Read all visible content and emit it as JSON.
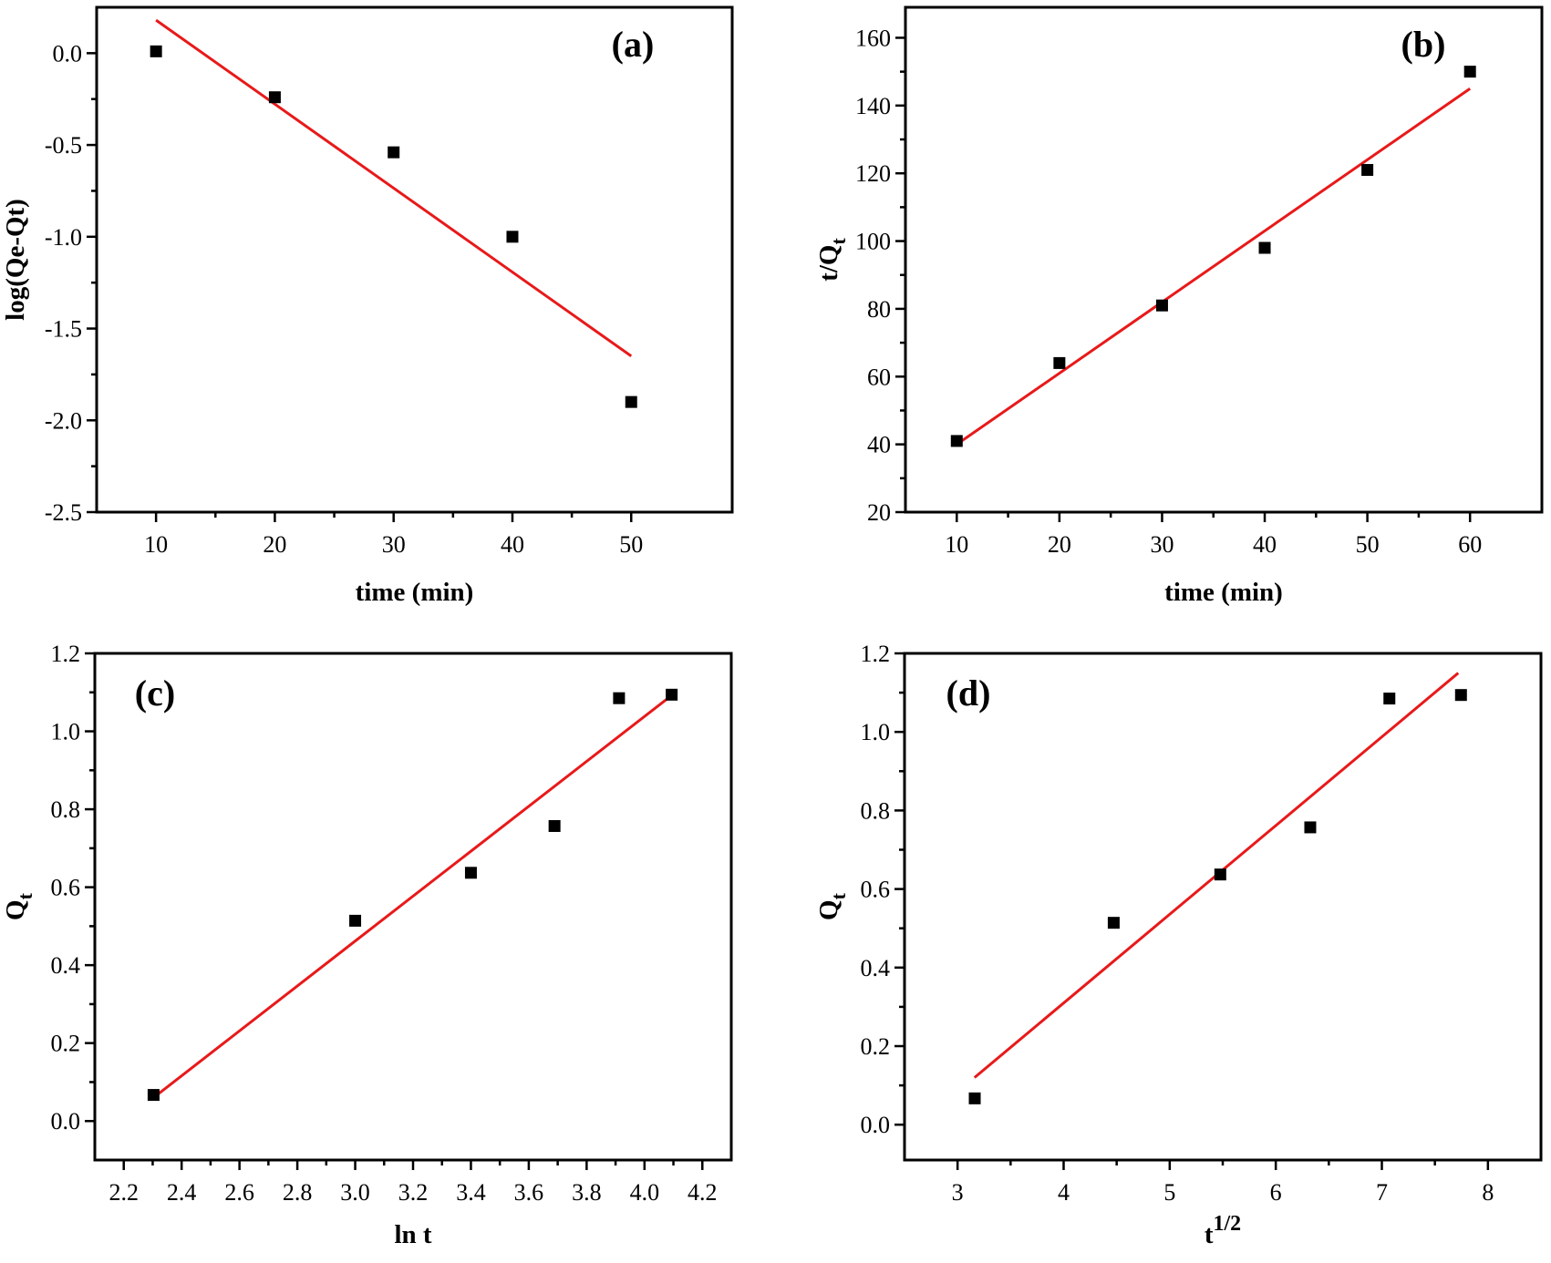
{
  "chart_data": [
    {
      "type": "scatter",
      "panel": "(a)",
      "xlabel": "time (min)",
      "ylabel": "log(Qe-Qt)",
      "xlim": [
        5,
        58.5
      ],
      "ylim": [
        -2.5,
        0.25
      ],
      "xticks": [
        10,
        20,
        30,
        40,
        50
      ],
      "yticks": [
        -2.5,
        -2.0,
        -1.5,
        -1.0,
        -0.5,
        0.0
      ],
      "xtick_labels": [
        "10",
        "20",
        "30",
        "40",
        "50"
      ],
      "ytick_labels": [
        "-2.5",
        "-2.0",
        "-1.5",
        "-1.0",
        "-0.5",
        "0.0"
      ],
      "x": [
        10,
        20,
        30,
        40,
        50
      ],
      "y": [
        0.01,
        -0.24,
        -0.54,
        -1.0,
        -1.9
      ],
      "fit": {
        "x": [
          10,
          50
        ],
        "y": [
          0.18,
          -1.65
        ],
        "color": "#e8191a"
      },
      "grid": false
    },
    {
      "type": "scatter",
      "panel": "(b)",
      "xlabel": "time (min)",
      "ylabel": {
        "base": "t/Q",
        "sub": "t"
      },
      "xlim": [
        5,
        67
      ],
      "ylim": [
        20,
        169
      ],
      "xticks": [
        10,
        20,
        30,
        40,
        50,
        60
      ],
      "yticks": [
        20,
        40,
        60,
        80,
        100,
        120,
        140,
        160
      ],
      "xtick_labels": [
        "10",
        "20",
        "30",
        "40",
        "50",
        "60"
      ],
      "ytick_labels": [
        "20",
        "40",
        "60",
        "80",
        "100",
        "120",
        "140",
        "160"
      ],
      "x": [
        10,
        20,
        30,
        40,
        50,
        60
      ],
      "y": [
        41,
        64,
        81,
        98,
        121,
        150
      ],
      "fit": {
        "x": [
          10,
          60
        ],
        "y": [
          40,
          145
        ],
        "color": "#e8191a"
      },
      "grid": false
    },
    {
      "type": "scatter",
      "panel": "(c)",
      "xlabel": "ln t",
      "ylabel": {
        "base": "Q",
        "sub": "t"
      },
      "xlim": [
        2.1,
        4.3
      ],
      "ylim": [
        -0.1,
        1.2
      ],
      "xticks": [
        2.2,
        2.4,
        2.6,
        2.8,
        3.0,
        3.2,
        3.4,
        3.6,
        3.8,
        4.0,
        4.2
      ],
      "yticks": [
        0.0,
        0.2,
        0.4,
        0.6,
        0.8,
        1.0,
        1.2
      ],
      "xtick_labels": [
        "2.2",
        "2.4",
        "2.6",
        "2.8",
        "3.0",
        "3.2",
        "3.4",
        "3.6",
        "3.8",
        "4.0",
        "4.2"
      ],
      "ytick_labels": [
        "0.0",
        "0.2",
        "0.4",
        "0.6",
        "0.8",
        "1.0",
        "1.2"
      ],
      "x": [
        2.303,
        3.0,
        3.4,
        3.689,
        3.912,
        4.094
      ],
      "y": [
        0.067,
        0.514,
        0.637,
        0.757,
        1.085,
        1.094
      ],
      "fit": {
        "x": [
          2.32,
          4.09
        ],
        "y": [
          0.07,
          1.09
        ],
        "color": "#e8191a"
      },
      "grid": false
    },
    {
      "type": "scatter",
      "panel": "(d)",
      "xlabel": {
        "base": "t",
        "sup": "1/2"
      },
      "ylabel": {
        "base": "Q",
        "sub": "t"
      },
      "xlim": [
        2.5,
        8.5
      ],
      "ylim": [
        -0.09,
        1.2
      ],
      "xticks": [
        3,
        4,
        5,
        6,
        7,
        8
      ],
      "yticks": [
        0.0,
        0.2,
        0.4,
        0.6,
        0.8,
        1.0,
        1.2
      ],
      "xtick_labels": [
        "3",
        "4",
        "5",
        "6",
        "7",
        "8"
      ],
      "ytick_labels": [
        "0.0",
        "0.2",
        "0.4",
        "0.6",
        "0.8",
        "1.0",
        "1.2"
      ],
      "x": [
        3.162,
        4.472,
        5.477,
        6.325,
        7.071,
        7.746
      ],
      "y": [
        0.067,
        0.514,
        0.637,
        0.757,
        1.085,
        1.094
      ],
      "fit": {
        "x": [
          3.16,
          7.72
        ],
        "y": [
          0.12,
          1.15
        ],
        "color": "#e8191a"
      },
      "grid": false
    }
  ]
}
